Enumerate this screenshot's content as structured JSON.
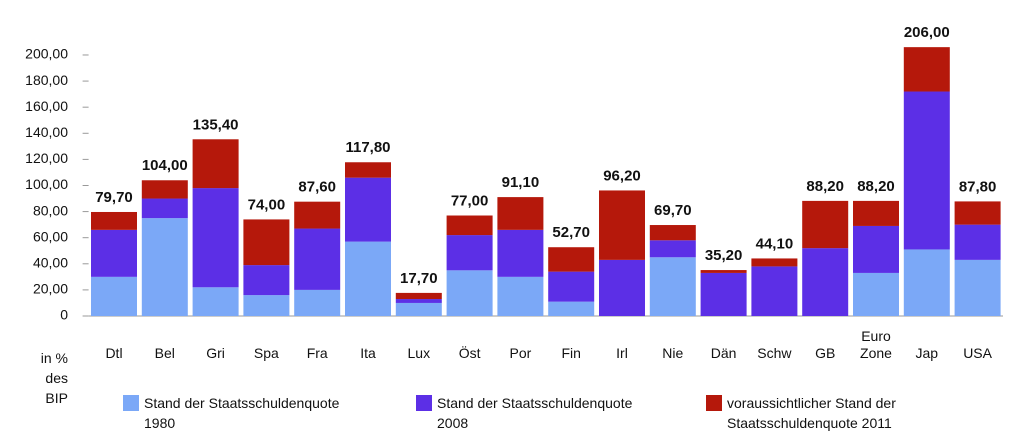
{
  "chart_data": {
    "type": "stacked-bar",
    "categories": [
      "Dtl",
      "Bel",
      "Gri",
      "Spa",
      "Fra",
      "Ita",
      "Lux",
      "Öst",
      "Por",
      "Fin",
      "Irl",
      "Nie",
      "Dän",
      "Schw",
      "GB",
      "Euro Zone",
      "Jap",
      "USA"
    ],
    "series": [
      {
        "name": "Stand der Staatsschuldenquote 1980",
        "color": "#7ba8f7",
        "values": [
          30,
          75,
          22,
          16,
          20,
          57,
          10,
          35,
          30,
          11,
          0,
          45,
          0,
          0,
          0,
          33,
          51,
          43
        ]
      },
      {
        "name": "Stand der Staatsschuldenquote 2008",
        "color": "#5c2fe6",
        "values": [
          36,
          15,
          76,
          23,
          47,
          49,
          3,
          27,
          36,
          23,
          43,
          13,
          33,
          38,
          52,
          36,
          121,
          27
        ]
      },
      {
        "name": "voraussichtlicher Stand der Staatsschuldenquote 2011",
        "color": "#b5180b",
        "values": [
          13.7,
          14,
          37.4,
          35,
          20.6,
          11.8,
          4.7,
          15,
          25.1,
          18.7,
          53.2,
          11.7,
          2.2,
          6.1,
          36.2,
          19.2,
          34,
          17.8
        ]
      }
    ],
    "totals": [
      79.7,
      104,
      135.4,
      74,
      87.6,
      117.8,
      17.7,
      77,
      91.1,
      52.7,
      96.2,
      69.7,
      35.2,
      44.1,
      88.2,
      88.2,
      206,
      87.8
    ],
    "total_labels": [
      "79,70",
      "104,00",
      "135,40",
      "74,00",
      "87,60",
      "117,80",
      "17,70",
      "77,00",
      "91,10",
      "52,70",
      "96,20",
      "69,70",
      "35,20",
      "44,10",
      "88,20",
      "88,20",
      "206,00",
      "87,80"
    ],
    "y_axis_label": "in % des BIP",
    "ylim": [
      0,
      215
    ],
    "yticks": [
      0,
      {
        "value": 20,
        "label": "20,00"
      },
      {
        "value": 40,
        "label": "40,00"
      },
      {
        "value": 60,
        "label": "60,00"
      },
      {
        "value": 80,
        "label": "80,00"
      },
      {
        "value": 100,
        "label": "100,00"
      },
      {
        "value": 120,
        "label": "120,00"
      },
      {
        "value": 140,
        "label": "140,00"
      },
      {
        "value": 160,
        "label": "160,00"
      },
      {
        "value": 180,
        "label": "180,00"
      },
      {
        "value": 200,
        "label": "200,00"
      }
    ],
    "grid": false
  }
}
